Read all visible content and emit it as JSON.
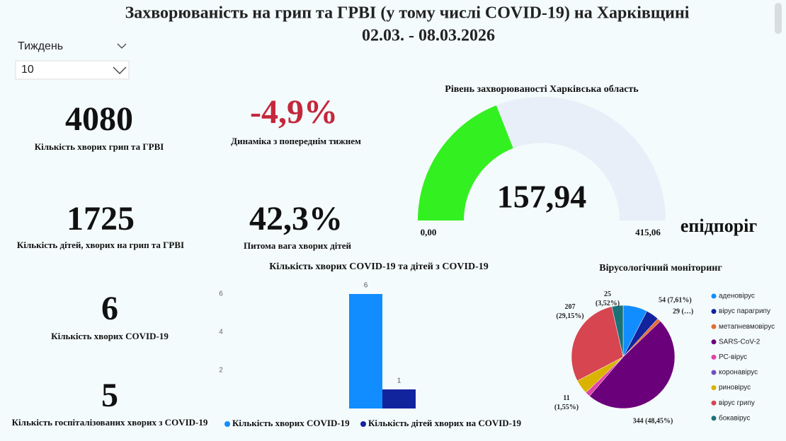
{
  "header": {
    "title": "Захворюваність на грип та ГРВІ (у тому числі COVID-19) на Харківщині",
    "subtitle": "02.03. - 08.03.2026"
  },
  "filter": {
    "label": "Тиждень",
    "value": "10"
  },
  "kpis": [
    {
      "value": "4080",
      "label": "Кількість хворих грип та ГРВІ"
    },
    {
      "value": "-4,9%",
      "label": "Динаміка з попереднім тижнем"
    },
    {
      "value": "1725",
      "label": "Кількість дітей, хворих на грип та ГРВІ"
    },
    {
      "value": "42,3%",
      "label": "Питома вага хворих дітей"
    },
    {
      "value": "6",
      "label": "Кількість хворих COVID-19"
    },
    {
      "value": "5",
      "label": "Кількість госпіталізованих хворих з COVID-19"
    }
  ],
  "chart_data": [
    {
      "type": "gauge",
      "title": "Рівень захворюваності Харківська область",
      "value": 157.94,
      "value_label": "157,94",
      "min": {
        "value": 0,
        "label": "0,00"
      },
      "max": {
        "value": 415.06,
        "label": "415,06"
      },
      "threshold_label": "епідпоріг",
      "color": "#33f020",
      "track_color": "#e8eff8"
    },
    {
      "type": "bar",
      "title": "Кількість хворих COVID-19 та дітей з COVID-19",
      "categories": [
        null
      ],
      "series": [
        {
          "name": "Кількість хворих COVID-19",
          "color": "#118dff",
          "values": [
            6
          ]
        },
        {
          "name": "Кількість дітей хворих на COVID-19",
          "color": "#12239e",
          "values": [
            1
          ]
        }
      ],
      "ylim": [
        0,
        6
      ],
      "yticks": [
        2,
        4,
        6
      ]
    },
    {
      "type": "pie",
      "title": "Вірусологічний моніторинг",
      "categories": [
        "аденовірус",
        "вірус парагрипу",
        "метапневмовірус",
        "SARS-CoV-2",
        "РС-вірус",
        "коронавірус",
        "риновірус",
        "вірус грипу",
        "бокавірус"
      ],
      "values": [
        54,
        29,
        8,
        344,
        11,
        0,
        32,
        207,
        25
      ],
      "value_labels": [
        "54 (7,61%)",
        "29 (…)",
        null,
        "344 (48,45%)",
        "11 (1,55%)",
        null,
        null,
        "207 (29,15%)",
        "25 (3,52%)"
      ],
      "colors": [
        "#118dff",
        "#12239e",
        "#e66c37",
        "#6b007b",
        "#e044a7",
        "#744ec2",
        "#d9b300",
        "#d64550",
        "#197278"
      ]
    }
  ]
}
